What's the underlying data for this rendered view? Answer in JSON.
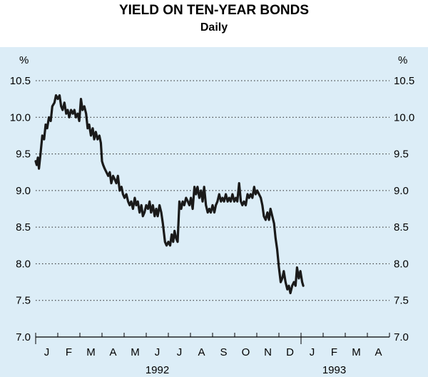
{
  "title": "YIELD ON TEN-YEAR BONDS",
  "subtitle": "Daily",
  "colors": {
    "panel": "#dcedf7",
    "line": "#1a1a1a",
    "grid": "#222222"
  },
  "chart_data": {
    "type": "line",
    "title": "YIELD ON TEN-YEAR BONDS",
    "subtitle": "Daily",
    "xlabel": "",
    "ylabel": "%",
    "y_unit_left": "%",
    "y_unit_right": "%",
    "ylim": [
      7.0,
      10.5
    ],
    "yticks": [
      7.0,
      7.5,
      8.0,
      8.5,
      9.0,
      9.5,
      10.0,
      10.5
    ],
    "ytick_labels": [
      "7.0",
      "7.5",
      "8.0",
      "8.5",
      "9.0",
      "9.5",
      "10.0",
      "10.5"
    ],
    "grid": "dotted horizontal",
    "month_labels": [
      "J",
      "F",
      "M",
      "A",
      "M",
      "J",
      "J",
      "A",
      "S",
      "O",
      "N",
      "D",
      "J",
      "F",
      "M",
      "A"
    ],
    "year_labels": [
      {
        "label": "1992",
        "month_index": 5.5
      },
      {
        "label": "1993",
        "month_index": 13.5
      }
    ],
    "xlim_months": [
      0,
      16
    ],
    "series": [
      {
        "values": [
          [
            0.0,
            9.4
          ],
          [
            0.05,
            9.35
          ],
          [
            0.1,
            9.45
          ],
          [
            0.15,
            9.3
          ],
          [
            0.22,
            9.5
          ],
          [
            0.3,
            9.75
          ],
          [
            0.38,
            9.7
          ],
          [
            0.45,
            9.9
          ],
          [
            0.52,
            9.85
          ],
          [
            0.6,
            10.0
          ],
          [
            0.68,
            9.95
          ],
          [
            0.75,
            10.15
          ],
          [
            0.85,
            10.2
          ],
          [
            0.92,
            10.3
          ],
          [
            1.0,
            10.25
          ],
          [
            1.08,
            10.3
          ],
          [
            1.15,
            10.15
          ],
          [
            1.22,
            10.1
          ],
          [
            1.3,
            10.2
          ],
          [
            1.38,
            10.05
          ],
          [
            1.45,
            10.1
          ],
          [
            1.52,
            10.0
          ],
          [
            1.6,
            10.1
          ],
          [
            1.68,
            10.05
          ],
          [
            1.75,
            10.1
          ],
          [
            1.82,
            10.0
          ],
          [
            1.9,
            10.05
          ],
          [
            1.97,
            9.95
          ],
          [
            2.05,
            10.25
          ],
          [
            2.12,
            10.1
          ],
          [
            2.2,
            10.15
          ],
          [
            2.28,
            10.05
          ],
          [
            2.35,
            9.85
          ],
          [
            2.42,
            9.9
          ],
          [
            2.5,
            9.75
          ],
          [
            2.58,
            9.85
          ],
          [
            2.65,
            9.7
          ],
          [
            2.72,
            9.8
          ],
          [
            2.8,
            9.7
          ],
          [
            2.88,
            9.75
          ],
          [
            2.95,
            9.65
          ],
          [
            3.0,
            9.4
          ],
          [
            3.05,
            9.35
          ],
          [
            3.12,
            9.3
          ],
          [
            3.2,
            9.25
          ],
          [
            3.28,
            9.2
          ],
          [
            3.35,
            9.25
          ],
          [
            3.42,
            9.1
          ],
          [
            3.5,
            9.2
          ],
          [
            3.58,
            9.15
          ],
          [
            3.65,
            9.1
          ],
          [
            3.72,
            9.2
          ],
          [
            3.8,
            9.0
          ],
          [
            3.88,
            9.05
          ],
          [
            3.95,
            8.95
          ],
          [
            4.02,
            8.9
          ],
          [
            4.1,
            8.95
          ],
          [
            4.18,
            8.85
          ],
          [
            4.25,
            8.8
          ],
          [
            4.32,
            8.85
          ],
          [
            4.4,
            8.75
          ],
          [
            4.48,
            8.9
          ],
          [
            4.55,
            8.8
          ],
          [
            4.62,
            8.85
          ],
          [
            4.7,
            8.7
          ],
          [
            4.78,
            8.8
          ],
          [
            4.85,
            8.65
          ],
          [
            4.92,
            8.7
          ],
          [
            5.0,
            8.8
          ],
          [
            5.08,
            8.75
          ],
          [
            5.15,
            8.85
          ],
          [
            5.22,
            8.7
          ],
          [
            5.3,
            8.8
          ],
          [
            5.38,
            8.65
          ],
          [
            5.45,
            8.75
          ],
          [
            5.52,
            8.65
          ],
          [
            5.6,
            8.8
          ],
          [
            5.68,
            8.7
          ],
          [
            5.75,
            8.55
          ],
          [
            5.85,
            8.3
          ],
          [
            5.92,
            8.25
          ],
          [
            6.0,
            8.3
          ],
          [
            6.08,
            8.25
          ],
          [
            6.15,
            8.4
          ],
          [
            6.22,
            8.3
          ],
          [
            6.28,
            8.45
          ],
          [
            6.35,
            8.35
          ],
          [
            6.42,
            8.3
          ],
          [
            6.5,
            8.85
          ],
          [
            6.58,
            8.75
          ],
          [
            6.65,
            8.85
          ],
          [
            6.72,
            8.8
          ],
          [
            6.8,
            8.9
          ],
          [
            6.88,
            8.85
          ],
          [
            6.95,
            8.8
          ],
          [
            7.02,
            8.9
          ],
          [
            7.1,
            8.75
          ],
          [
            7.18,
            9.05
          ],
          [
            7.25,
            8.95
          ],
          [
            7.32,
            9.05
          ],
          [
            7.4,
            8.9
          ],
          [
            7.48,
            9.0
          ],
          [
            7.55,
            8.85
          ],
          [
            7.62,
            9.05
          ],
          [
            7.7,
            8.8
          ],
          [
            7.78,
            8.7
          ],
          [
            7.85,
            8.75
          ],
          [
            7.92,
            8.7
          ],
          [
            8.0,
            8.8
          ],
          [
            8.08,
            8.7
          ],
          [
            8.15,
            8.8
          ],
          [
            8.22,
            8.85
          ],
          [
            8.3,
            8.95
          ],
          [
            8.38,
            8.85
          ],
          [
            8.45,
            8.9
          ],
          [
            8.52,
            8.85
          ],
          [
            8.6,
            8.95
          ],
          [
            8.68,
            8.85
          ],
          [
            8.75,
            8.9
          ],
          [
            8.82,
            8.85
          ],
          [
            8.9,
            8.95
          ],
          [
            8.98,
            8.85
          ],
          [
            9.05,
            8.9
          ],
          [
            9.12,
            8.85
          ],
          [
            9.2,
            9.1
          ],
          [
            9.28,
            8.85
          ],
          [
            9.35,
            8.8
          ],
          [
            9.42,
            8.85
          ],
          [
            9.5,
            8.8
          ],
          [
            9.58,
            8.95
          ],
          [
            9.65,
            8.9
          ],
          [
            9.72,
            8.95
          ],
          [
            9.8,
            8.9
          ],
          [
            9.88,
            9.05
          ],
          [
            9.95,
            8.95
          ],
          [
            10.02,
            9.0
          ],
          [
            10.1,
            8.95
          ],
          [
            10.18,
            8.9
          ],
          [
            10.25,
            8.8
          ],
          [
            10.32,
            8.65
          ],
          [
            10.4,
            8.6
          ],
          [
            10.48,
            8.7
          ],
          [
            10.55,
            8.6
          ],
          [
            10.62,
            8.75
          ],
          [
            10.7,
            8.65
          ],
          [
            10.78,
            8.55
          ],
          [
            10.85,
            8.35
          ],
          [
            10.92,
            8.2
          ],
          [
            11.0,
            7.95
          ],
          [
            11.08,
            7.75
          ],
          [
            11.15,
            7.8
          ],
          [
            11.22,
            7.9
          ],
          [
            11.3,
            7.75
          ],
          [
            11.38,
            7.65
          ],
          [
            11.45,
            7.7
          ],
          [
            11.52,
            7.6
          ],
          [
            11.6,
            7.7
          ],
          [
            11.68,
            7.75
          ],
          [
            11.75,
            7.7
          ],
          [
            11.82,
            7.95
          ],
          [
            11.9,
            7.8
          ],
          [
            11.97,
            7.9
          ],
          [
            12.05,
            7.75
          ],
          [
            12.1,
            7.7
          ]
        ]
      }
    ]
  }
}
